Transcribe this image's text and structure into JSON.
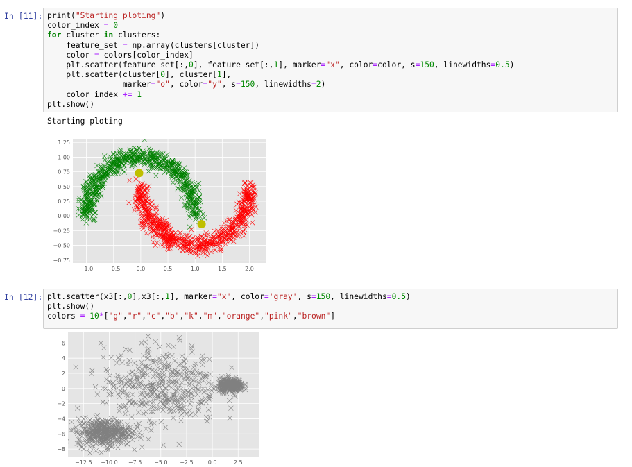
{
  "cells": [
    {
      "prompt": "In [11]:",
      "code_lines": [
        [
          [
            "t",
            "print("
          ],
          [
            "s",
            "\"Starting ploting\""
          ],
          [
            "t",
            ")"
          ]
        ],
        [
          [
            "t",
            "color_index "
          ],
          [
            "o",
            "="
          ],
          [
            "t",
            " "
          ],
          [
            "n",
            "0"
          ]
        ],
        [
          [
            "k",
            "for"
          ],
          [
            "t",
            " cluster "
          ],
          [
            "k",
            "in"
          ],
          [
            "t",
            " clusters:"
          ]
        ],
        [
          [
            "t",
            "    feature_set "
          ],
          [
            "o",
            "="
          ],
          [
            "t",
            " np.array(clusters[cluster])"
          ]
        ],
        [
          [
            "t",
            "    color "
          ],
          [
            "o",
            "="
          ],
          [
            "t",
            " colors[color_index]"
          ]
        ],
        [
          [
            "t",
            "    plt.scatter(feature_set[:,"
          ],
          [
            "n",
            "0"
          ],
          [
            "t",
            "], feature_set[:,"
          ],
          [
            "n",
            "1"
          ],
          [
            "t",
            "], marker"
          ],
          [
            "o",
            "="
          ],
          [
            "s",
            "\"x\""
          ],
          [
            "t",
            ", color"
          ],
          [
            "o",
            "="
          ],
          [
            "t",
            "color, s"
          ],
          [
            "o",
            "="
          ],
          [
            "n",
            "150"
          ],
          [
            "t",
            ", linewidths"
          ],
          [
            "o",
            "="
          ],
          [
            "n",
            "0.5"
          ],
          [
            "t",
            ")"
          ]
        ],
        [
          [
            "t",
            "    plt.scatter(cluster["
          ],
          [
            "n",
            "0"
          ],
          [
            "t",
            "], cluster["
          ],
          [
            "n",
            "1"
          ],
          [
            "t",
            "],"
          ]
        ],
        [
          [
            "t",
            "                marker"
          ],
          [
            "o",
            "="
          ],
          [
            "s",
            "\"o\""
          ],
          [
            "t",
            ", color"
          ],
          [
            "o",
            "="
          ],
          [
            "s",
            "\"y\""
          ],
          [
            "t",
            ", s"
          ],
          [
            "o",
            "="
          ],
          [
            "n",
            "150"
          ],
          [
            "t",
            ", linewidths"
          ],
          [
            "o",
            "="
          ],
          [
            "n",
            "2"
          ],
          [
            "t",
            ")"
          ]
        ],
        [
          [
            "t",
            "    color_index "
          ],
          [
            "o",
            "+="
          ],
          [
            "t",
            " "
          ],
          [
            "n",
            "1"
          ]
        ],
        [
          [
            "t",
            "plt.show()"
          ]
        ]
      ],
      "output_text": "Starting ploting"
    },
    {
      "prompt": "In [12]:",
      "code_lines": [
        [
          [
            "t",
            "plt.scatter(x3[:,"
          ],
          [
            "n",
            "0"
          ],
          [
            "t",
            "],x3[:,"
          ],
          [
            "n",
            "1"
          ],
          [
            "t",
            "], marker"
          ],
          [
            "o",
            "="
          ],
          [
            "s",
            "\"x\""
          ],
          [
            "t",
            ", color"
          ],
          [
            "o",
            "="
          ],
          [
            "s",
            "'gray'"
          ],
          [
            "t",
            ", s"
          ],
          [
            "o",
            "="
          ],
          [
            "n",
            "150"
          ],
          [
            "t",
            ", linewidths"
          ],
          [
            "o",
            "="
          ],
          [
            "n",
            "0.5"
          ],
          [
            "t",
            ")"
          ]
        ],
        [
          [
            "t",
            "plt.show()"
          ]
        ],
        [
          [
            "t",
            "colors "
          ],
          [
            "o",
            "="
          ],
          [
            "t",
            " "
          ],
          [
            "n",
            "10"
          ],
          [
            "o",
            "*"
          ],
          [
            "t",
            "["
          ],
          [
            "s",
            "\"g\""
          ],
          [
            "t",
            ","
          ],
          [
            "s",
            "\"r\""
          ],
          [
            "t",
            ","
          ],
          [
            "s",
            "\"c\""
          ],
          [
            "t",
            ","
          ],
          [
            "s",
            "\"b\""
          ],
          [
            "t",
            ","
          ],
          [
            "s",
            "\"k\""
          ],
          [
            "t",
            ","
          ],
          [
            "s",
            "\"m\""
          ],
          [
            "t",
            ","
          ],
          [
            "s",
            "\"orange\""
          ],
          [
            "t",
            ","
          ],
          [
            "s",
            "\"pink\""
          ],
          [
            "t",
            ","
          ],
          [
            "s",
            "\"brown\""
          ],
          [
            "t",
            "]"
          ]
        ]
      ]
    }
  ],
  "colors": {
    "green": "#008000",
    "red": "#ff0000",
    "yellow": "#bfbf00",
    "gray": "#808080",
    "plot_bg": "#e5e5e5",
    "prompt": "#303f9f"
  },
  "chart_data": [
    {
      "type": "scatter",
      "title": "",
      "xlabel": "",
      "ylabel": "",
      "xlim": [
        -1.25,
        2.3
      ],
      "ylim": [
        -0.8,
        1.3
      ],
      "xticks": [
        "−1.0",
        "−0.5",
        "0.0",
        "0.5",
        "1.0",
        "1.5",
        "2.0"
      ],
      "xtick_values": [
        -1.0,
        -0.5,
        0.0,
        0.5,
        1.0,
        1.5,
        2.0
      ],
      "yticks": [
        "1.25",
        "1.00",
        "0.75",
        "0.50",
        "0.25",
        "0.00",
        "−0.25",
        "−0.50",
        "−0.75"
      ],
      "ytick_values": [
        1.25,
        1.0,
        0.75,
        0.5,
        0.25,
        0.0,
        -0.25,
        -0.5,
        -0.75
      ],
      "grid": true,
      "series": [
        {
          "marker": "x",
          "color": "green",
          "shape": "upper-moon",
          "center": [
            0.0,
            0.0
          ],
          "radius": 1.0,
          "angle_range": [
            0,
            180
          ],
          "count": 700,
          "noise": 0.08
        },
        {
          "marker": "x",
          "color": "red",
          "shape": "lower-moon",
          "center": [
            1.0,
            0.5
          ],
          "radius": 1.0,
          "angle_range": [
            180,
            360
          ],
          "count": 700,
          "noise": 0.08
        },
        {
          "marker": "o",
          "color": "yellow",
          "points": [
            [
              -0.03,
              0.73
            ],
            [
              1.12,
              -0.14
            ]
          ]
        }
      ]
    },
    {
      "type": "scatter",
      "title": "",
      "xlabel": "",
      "ylabel": "",
      "xlim": [
        -14,
        4.5
      ],
      "ylim": [
        -9,
        7.5
      ],
      "xticks": [
        "−12.5",
        "−10.0",
        "−7.5",
        "−5.0",
        "−2.5",
        "0.0",
        "2.5"
      ],
      "xtick_values": [
        -12.5,
        -10.0,
        -7.5,
        -5.0,
        -2.5,
        0.0,
        2.5
      ],
      "yticks": [
        "6",
        "4",
        "2",
        "0",
        "−2",
        "−4",
        "−6",
        "−8"
      ],
      "ytick_values": [
        6,
        4,
        2,
        0,
        -2,
        -4,
        -6,
        -8
      ],
      "grid": true,
      "series": [
        {
          "marker": "x",
          "color": "gray",
          "shape": "blob",
          "center": [
            -10.5,
            -5.8
          ],
          "spread": [
            1.3,
            0.9
          ],
          "count": 450
        },
        {
          "marker": "x",
          "color": "gray",
          "shape": "blob",
          "center": [
            -5.0,
            0.5
          ],
          "spread": [
            2.8,
            2.6
          ],
          "count": 450
        },
        {
          "marker": "x",
          "color": "gray",
          "shape": "blob",
          "center": [
            1.8,
            0.4
          ],
          "spread": [
            0.6,
            0.4
          ],
          "count": 350
        }
      ]
    }
  ]
}
